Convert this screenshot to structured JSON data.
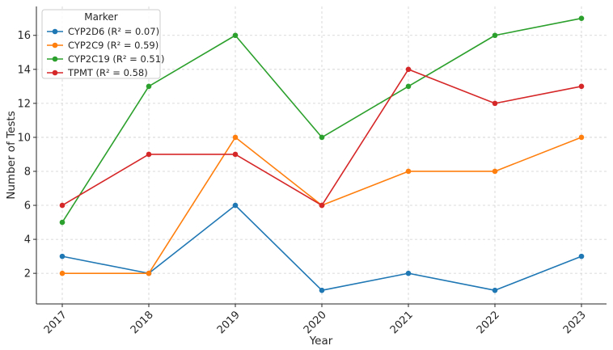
{
  "chart_data": {
    "type": "line",
    "title": "",
    "xlabel": "Year",
    "ylabel": "Number of Tests",
    "categories": [
      "2017",
      "2018",
      "2019",
      "2020",
      "2021",
      "2022",
      "2023"
    ],
    "ylim": [
      0.2,
      17.7
    ],
    "yticks": [
      2,
      4,
      6,
      8,
      10,
      12,
      14,
      16
    ],
    "grid": true,
    "legend": {
      "title": "Marker",
      "placement": "top-left"
    },
    "series": [
      {
        "name": "CYP2D6 (R² = 0.07)",
        "color": "#1f77b4",
        "values": [
          3,
          2,
          6,
          1,
          2,
          1,
          3
        ]
      },
      {
        "name": "CYP2C9 (R² = 0.59)",
        "color": "#ff7f0e",
        "values": [
          2,
          2,
          10,
          6,
          8,
          8,
          10
        ]
      },
      {
        "name": "CYP2C19 (R² = 0.51)",
        "color": "#2ca02c",
        "values": [
          5,
          13,
          16,
          10,
          13,
          16,
          17
        ]
      },
      {
        "name": "TPMT (R² = 0.58)",
        "color": "#d62728",
        "values": [
          6,
          9,
          9,
          6,
          14,
          12,
          13
        ]
      }
    ]
  }
}
